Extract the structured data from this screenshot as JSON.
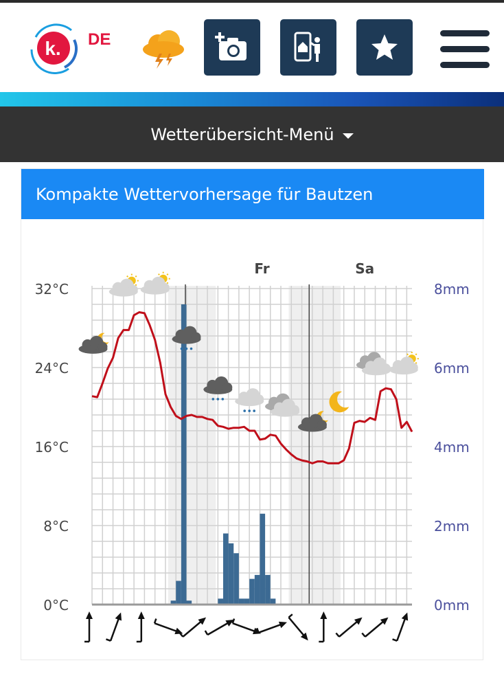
{
  "header": {
    "logo_letter": "k.",
    "country": "DE",
    "icons": [
      "thunderstorm-icon",
      "camera-add-icon",
      "phone-photo-icon",
      "star-icon",
      "menu-icon"
    ]
  },
  "menubar": {
    "label": "Wetterübersicht-Menü"
  },
  "card": {
    "title": "Kompakte Wettervorhersage für Bautzen"
  },
  "colors": {
    "temperature": "#c00f1a",
    "precipitation": "#3c6a93",
    "title_bar": "#1a89f4",
    "menu_bar": "#333333",
    "right_axis": "#4a4f9c"
  },
  "chart_data": {
    "type": "line",
    "day_labels": [
      {
        "label": "Fr",
        "x": 16.2
      },
      {
        "label": "Sa",
        "x": 26.0
      }
    ],
    "left_axis": {
      "unit": "°C",
      "min": 0,
      "max": 32,
      "ticks": [
        "0°C",
        "8°C",
        "16°C",
        "24°C",
        "32°C"
      ]
    },
    "right_axis": {
      "unit": "mm",
      "min": 0,
      "max": 8,
      "ticks": [
        "0mm",
        "2mm",
        "4mm",
        "6mm",
        "8mm"
      ]
    },
    "grid": true,
    "series": [
      {
        "kind": "temperature",
        "points": [
          [
            0,
            21.1
          ],
          [
            0.5,
            21.0
          ],
          [
            1,
            22.4
          ],
          [
            1.5,
            23.9
          ],
          [
            2,
            25
          ],
          [
            2.5,
            27
          ],
          [
            3,
            27.8
          ],
          [
            3.5,
            27.8
          ],
          [
            4,
            29.3
          ],
          [
            4.5,
            29.6
          ],
          [
            5,
            29.5
          ],
          [
            5.5,
            28.3
          ],
          [
            6,
            26.8
          ],
          [
            6.5,
            24.5
          ],
          [
            7,
            21.3
          ],
          [
            7.5,
            20.0
          ],
          [
            8,
            19.1
          ],
          [
            8.5,
            18.8
          ],
          [
            9,
            19.1
          ],
          [
            9.5,
            19.2
          ],
          [
            10,
            19.0
          ],
          [
            10.5,
            19.0
          ],
          [
            11,
            18.8
          ],
          [
            11.5,
            18.7
          ],
          [
            12,
            18.1
          ],
          [
            12.5,
            18.0
          ],
          [
            13,
            17.8
          ],
          [
            13.5,
            17.9
          ],
          [
            14,
            17.9
          ],
          [
            14.5,
            18.0
          ],
          [
            15,
            17.6
          ],
          [
            15.5,
            17.6
          ],
          [
            16,
            16.7
          ],
          [
            16.5,
            16.8
          ],
          [
            17,
            17.2
          ],
          [
            17.5,
            17.1
          ],
          [
            18,
            16.3
          ],
          [
            18.5,
            15.7
          ],
          [
            19,
            15.2
          ],
          [
            19.5,
            14.8
          ],
          [
            20,
            14.6
          ],
          [
            20.5,
            14.5
          ],
          [
            21,
            14.3
          ],
          [
            21.5,
            14.5
          ],
          [
            22,
            14.5
          ],
          [
            22.5,
            14.3
          ],
          [
            23,
            14.3
          ],
          [
            23.5,
            14.3
          ],
          [
            24,
            14.6
          ],
          [
            24.5,
            15.8
          ],
          [
            25,
            18.4
          ],
          [
            25.5,
            18.6
          ],
          [
            26,
            18.5
          ],
          [
            26.5,
            18.9
          ],
          [
            27,
            18.7
          ],
          [
            27.5,
            21.6
          ],
          [
            28,
            21.9
          ],
          [
            28.5,
            21.8
          ],
          [
            29,
            20.8
          ],
          [
            29.5,
            17.9
          ],
          [
            30,
            18.5
          ],
          [
            30.5,
            17.5
          ]
        ]
      },
      {
        "kind": "precipitation",
        "bars": [
          {
            "x": 7.75,
            "mm": 0.1
          },
          {
            "x": 8.25,
            "mm": 0.6
          },
          {
            "x": 8.75,
            "mm": 7.6
          },
          {
            "x": 9.25,
            "mm": 0.1
          },
          {
            "x": 12.25,
            "mm": 0.15
          },
          {
            "x": 12.75,
            "mm": 1.8
          },
          {
            "x": 13.25,
            "mm": 1.55
          },
          {
            "x": 13.75,
            "mm": 1.3
          },
          {
            "x": 14.25,
            "mm": 0.15
          },
          {
            "x": 14.75,
            "mm": 0.15
          },
          {
            "x": 15.25,
            "mm": 0.65
          },
          {
            "x": 15.75,
            "mm": 0.75
          },
          {
            "x": 16.25,
            "mm": 2.3
          },
          {
            "x": 16.75,
            "mm": 0.75
          },
          {
            "x": 17.25,
            "mm": 0.15
          }
        ]
      }
    ],
    "shaded_ranges": [
      [
        7.25,
        11.8
      ],
      [
        18.75,
        23.7
      ]
    ],
    "day_dividers": [
      8.9,
      20.7
    ],
    "weather_icons": [
      {
        "x": 0.1,
        "temp": 26.3,
        "icon": "cloud-moon-icon"
      },
      {
        "x": 3.0,
        "temp": 32.1,
        "icon": "cloud-sun-icon"
      },
      {
        "x": 6.0,
        "temp": 32.3,
        "icon": "cloud-sun-icon"
      },
      {
        "x": 9.0,
        "temp": 27.3,
        "icon": "cloud-rain-icon"
      },
      {
        "x": 12.0,
        "temp": 22.2,
        "icon": "cloud-rain-icon"
      },
      {
        "x": 15.0,
        "temp": 21.0,
        "icon": "cloud-drizzle-icon"
      },
      {
        "x": 18.0,
        "temp": 20.2,
        "icon": "cloudy-icon"
      },
      {
        "x": 21.0,
        "temp": 18.4,
        "icon": "cloud-moon-icon"
      },
      {
        "x": 23.5,
        "temp": 20.5,
        "icon": "moon-icon"
      },
      {
        "x": 26.7,
        "temp": 24.4,
        "icon": "cloudy-icon"
      },
      {
        "x": 29.7,
        "temp": 24.2,
        "icon": "cloud-sun-icon"
      }
    ],
    "wind_directions_deg": [
      180,
      200,
      180,
      290,
      230,
      240,
      290,
      250,
      320,
      180,
      230,
      230,
      200
    ]
  }
}
